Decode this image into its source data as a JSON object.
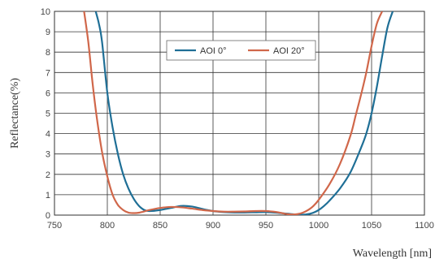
{
  "chart_data": {
    "type": "line",
    "xlabel": "Wavelength [nm]",
    "ylabel": "Reflectance(%)",
    "xlim": [
      750,
      1100
    ],
    "ylim": [
      0,
      10
    ],
    "x_ticks": [
      750,
      800,
      850,
      900,
      950,
      1000,
      1050,
      1100
    ],
    "y_ticks": [
      0,
      1,
      2,
      3,
      4,
      5,
      6,
      7,
      8,
      9,
      10
    ],
    "grid": true,
    "legend_position": "top-center",
    "series": [
      {
        "name": "AOI 0°",
        "color": "#1f6f96",
        "x": [
          789,
          792,
          795,
          800,
          805,
          810,
          815,
          820,
          825,
          830,
          835,
          840,
          850,
          860,
          870,
          880,
          890,
          900,
          910,
          920,
          930,
          940,
          950,
          960,
          970,
          980,
          985,
          990,
          995,
          1000,
          1005,
          1010,
          1020,
          1030,
          1040,
          1045,
          1050,
          1055,
          1060,
          1065,
          1070
        ],
        "y": [
          10,
          9.4,
          8.5,
          6.0,
          4.3,
          3.0,
          2.0,
          1.3,
          0.8,
          0.45,
          0.25,
          0.2,
          0.25,
          0.35,
          0.45,
          0.42,
          0.3,
          0.2,
          0.15,
          0.13,
          0.13,
          0.14,
          0.15,
          0.12,
          0.07,
          0.02,
          0.02,
          0.05,
          0.12,
          0.25,
          0.45,
          0.7,
          1.3,
          2.1,
          3.3,
          4.0,
          5.0,
          6.3,
          7.8,
          9.2,
          10
        ]
      },
      {
        "name": "AOI 20°",
        "color": "#d0674a",
        "x": [
          778,
          782,
          786,
          790,
          795,
          800,
          805,
          810,
          815,
          820,
          825,
          830,
          840,
          850,
          860,
          870,
          880,
          890,
          900,
          910,
          920,
          930,
          940,
          950,
          960,
          965,
          970,
          975,
          980,
          985,
          990,
          995,
          1000,
          1010,
          1020,
          1030,
          1035,
          1040,
          1045,
          1050,
          1055,
          1060
        ],
        "y": [
          10,
          8.5,
          6.5,
          4.8,
          3.1,
          1.9,
          1.0,
          0.5,
          0.25,
          0.12,
          0.1,
          0.12,
          0.25,
          0.35,
          0.4,
          0.38,
          0.32,
          0.25,
          0.2,
          0.17,
          0.17,
          0.18,
          0.2,
          0.2,
          0.15,
          0.1,
          0.05,
          0.03,
          0.05,
          0.12,
          0.25,
          0.45,
          0.75,
          1.5,
          2.5,
          3.9,
          4.9,
          5.9,
          7.0,
          8.3,
          9.4,
          10
        ]
      }
    ]
  }
}
